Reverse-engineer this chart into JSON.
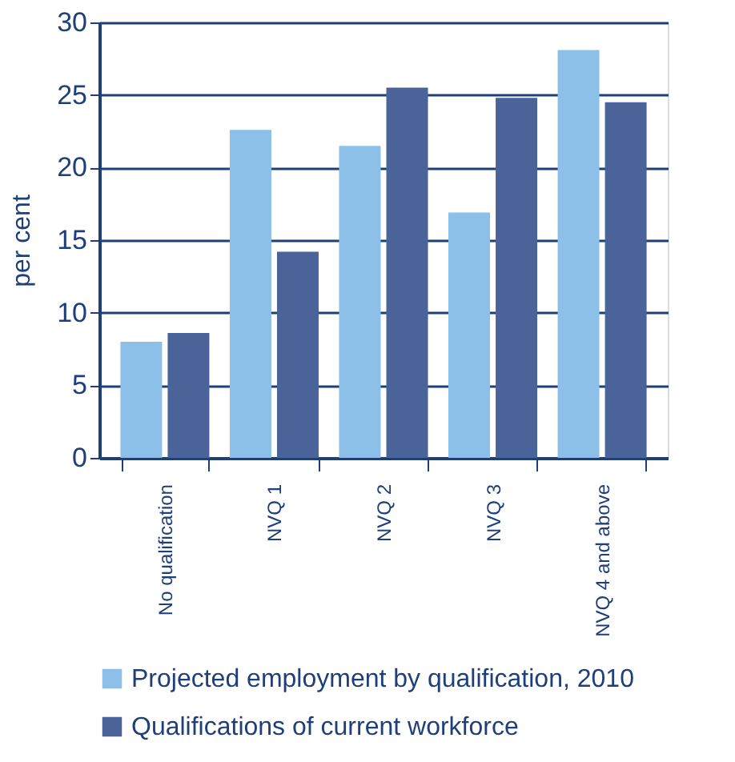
{
  "chart_data": {
    "type": "bar",
    "ylabel": "per cent",
    "categories": [
      "No qualification",
      "NVQ 1",
      "NVQ 2",
      "NVQ 3",
      "NVQ 4 and above"
    ],
    "series": [
      {
        "name": "Projected employment by qualification, 2010",
        "color": "#8cc0e8",
        "values": [
          8.0,
          22.6,
          21.5,
          16.9,
          28.1
        ]
      },
      {
        "name": "Qualifications of current workforce",
        "color": "#4a6499",
        "values": [
          8.6,
          14.2,
          25.5,
          24.8,
          24.5
        ]
      }
    ],
    "ylim": [
      0,
      30
    ],
    "yticks": [
      0,
      5,
      10,
      15,
      20,
      25,
      30
    ],
    "grid": "y",
    "legend": "bottom left"
  }
}
